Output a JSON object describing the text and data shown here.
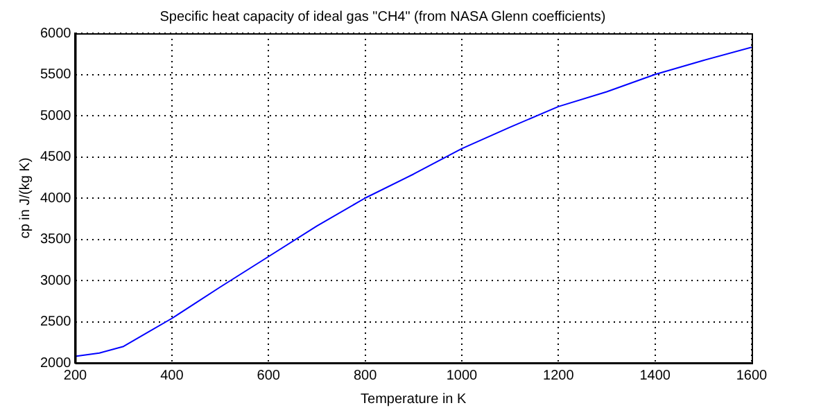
{
  "chart_data": {
    "type": "line",
    "title": "Specific heat capacity of ideal gas \"CH4\" (from NASA Glenn coefficients)",
    "xlabel": "Temperature in K",
    "ylabel": "cp in J/(kg K)",
    "x": [
      200,
      250,
      300,
      350,
      400,
      450,
      500,
      600,
      700,
      800,
      900,
      1000,
      1100,
      1200,
      1300,
      1400,
      1500,
      1600
    ],
    "series": [
      {
        "color": "#0000ff",
        "values": [
          2080,
          2120,
          2200,
          2370,
          2540,
          2730,
          2920,
          3290,
          3660,
          4000,
          4290,
          4600,
          4860,
          5110,
          5290,
          5500,
          5670,
          5830
        ]
      }
    ],
    "xlim": [
      200,
      1600
    ],
    "xticks": [
      200,
      400,
      600,
      800,
      1000,
      1200,
      1400,
      1600
    ],
    "ylim": [
      2000,
      6000
    ],
    "yticks": [
      2000,
      2500,
      3000,
      3500,
      4000,
      4500,
      5000,
      5500,
      6000
    ],
    "grid": true,
    "legend": false,
    "marker": "none",
    "line_style": "solid"
  }
}
